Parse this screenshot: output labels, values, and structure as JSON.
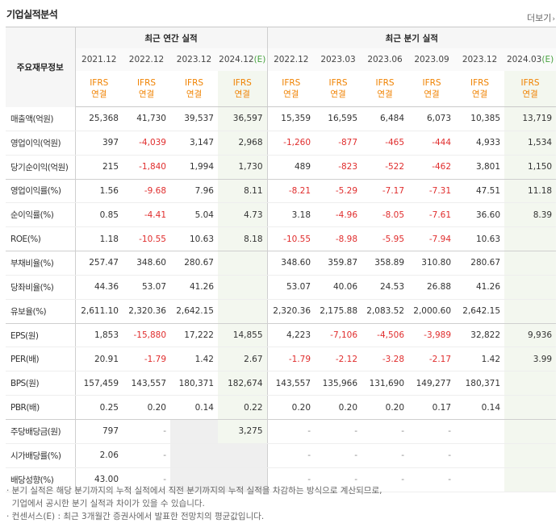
{
  "title": "기업실적분석",
  "more_label": "더보기",
  "header": {
    "corner": "주요재무정보",
    "annual_group": "최근 연간 실적",
    "quarter_group": "최근 분기 실적",
    "periods": [
      "2021.12",
      "2022.12",
      "2023.12",
      "2024.12(E)",
      "2022.12",
      "2023.03",
      "2023.06",
      "2023.09",
      "2023.12",
      "2024.03(E)"
    ],
    "ifrs_line1": "IFRS",
    "ifrs_line2": "연결"
  },
  "rows": [
    {
      "label": "매출액(억원)",
      "values": [
        "25,368",
        "41,730",
        "39,537",
        "36,597",
        "15,359",
        "16,595",
        "6,484",
        "6,073",
        "10,385",
        "13,719"
      ]
    },
    {
      "label": "영업이익(억원)",
      "values": [
        "397",
        "-4,039",
        "3,147",
        "2,968",
        "-1,260",
        "-877",
        "-465",
        "-444",
        "4,933",
        "1,534"
      ]
    },
    {
      "label": "당기순이익(억원)",
      "values": [
        "215",
        "-1,840",
        "1,994",
        "1,730",
        "489",
        "-823",
        "-522",
        "-462",
        "3,801",
        "1,150"
      ]
    },
    {
      "label": "영업이익률(%)",
      "values": [
        "1.56",
        "-9.68",
        "7.96",
        "8.11",
        "-8.21",
        "-5.29",
        "-7.17",
        "-7.31",
        "47.51",
        "11.18"
      ]
    },
    {
      "label": "순이익률(%)",
      "values": [
        "0.85",
        "-4.41",
        "5.04",
        "4.73",
        "3.18",
        "-4.96",
        "-8.05",
        "-7.61",
        "36.60",
        "8.39"
      ]
    },
    {
      "label": "ROE(%)",
      "values": [
        "1.18",
        "-10.55",
        "10.63",
        "8.18",
        "-10.55",
        "-8.98",
        "-5.95",
        "-7.94",
        "10.63",
        ""
      ]
    },
    {
      "label": "부채비율(%)",
      "values": [
        "257.47",
        "348.60",
        "280.67",
        "",
        "348.60",
        "359.87",
        "358.89",
        "310.80",
        "280.67",
        ""
      ]
    },
    {
      "label": "당좌비율(%)",
      "values": [
        "44.36",
        "53.07",
        "41.26",
        "",
        "53.07",
        "40.06",
        "24.53",
        "26.88",
        "41.26",
        ""
      ]
    },
    {
      "label": "유보율(%)",
      "values": [
        "2,611.10",
        "2,320.36",
        "2,642.15",
        "",
        "2,320.36",
        "2,175.88",
        "2,083.52",
        "2,000.60",
        "2,642.15",
        ""
      ]
    },
    {
      "label": "EPS(원)",
      "values": [
        "1,853",
        "-15,880",
        "17,222",
        "14,855",
        "4,223",
        "-7,106",
        "-4,506",
        "-3,989",
        "32,822",
        "9,936"
      ]
    },
    {
      "label": "PER(배)",
      "values": [
        "20.91",
        "-1.79",
        "1.42",
        "2.67",
        "-1.79",
        "-2.12",
        "-3.28",
        "-2.17",
        "1.42",
        "3.99"
      ]
    },
    {
      "label": "BPS(원)",
      "values": [
        "157,459",
        "143,557",
        "180,371",
        "182,674",
        "143,557",
        "135,966",
        "131,690",
        "149,277",
        "180,371",
        ""
      ]
    },
    {
      "label": "PBR(배)",
      "values": [
        "0.25",
        "0.20",
        "0.14",
        "0.22",
        "0.20",
        "0.20",
        "0.20",
        "0.17",
        "0.14",
        ""
      ]
    },
    {
      "label": "주당배당금(원)",
      "values": [
        "797",
        "-",
        "",
        "3,275",
        "-",
        "-",
        "-",
        "-",
        "",
        ""
      ]
    },
    {
      "label": "시가배당률(%)",
      "values": [
        "2.06",
        "-",
        "",
        "",
        "-",
        "-",
        "-",
        "-",
        "",
        ""
      ]
    },
    {
      "label": "배당성향(%)",
      "values": [
        "43.00",
        "-",
        "",
        "",
        "-",
        "-",
        "-",
        "-",
        "",
        ""
      ]
    }
  ],
  "notes": [
    "· 분기 실적은 해당 분기까지의 누적 실적에서 직전 분기까지의 누적 실적을 차감하는 방식으로 계산되므로,",
    "  기업에서 공시한 분기 실적과 차이가 있을 수 있습니다.",
    "· 컨센서스(E) : 최근 3개월간 증권사에서 발표한 전망치의 평균값입니다."
  ],
  "colors": {
    "negative": "#e02d2d",
    "ifrs": "#f08200",
    "estimate": "#47a23f",
    "estimate_bg": "#f3f7ef"
  }
}
